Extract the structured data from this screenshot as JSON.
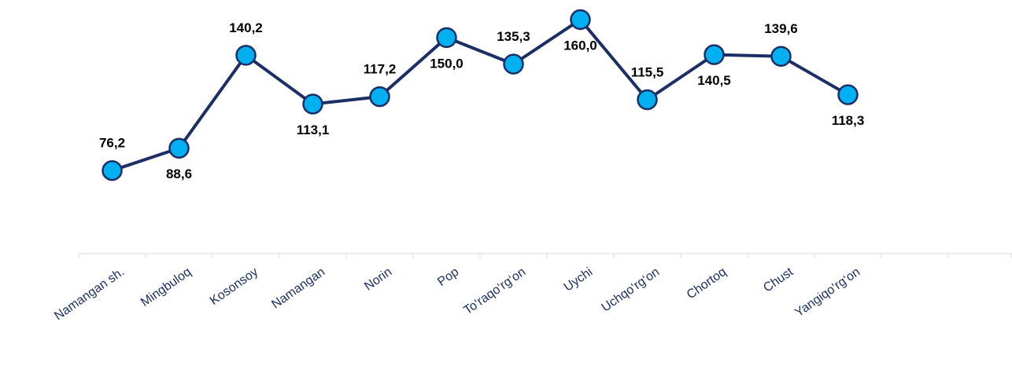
{
  "chart_data": {
    "type": "line",
    "categories": [
      "Namangan sh.",
      "Mingbuloq",
      "Kosonsoy",
      "Namangan",
      "Norin",
      "Pop",
      "To‘raqo‘rg‘on",
      "Uychi",
      "Uchqo‘rg‘on",
      "Chortoq",
      "Chust",
      "Yangiqo‘rg‘on",
      null,
      null
    ],
    "series": [
      {
        "name": null,
        "color": "#1b2f66",
        "marker_color": "#00b0f0",
        "values": [
          76.2,
          88.6,
          140.2,
          113.1,
          117.2,
          150.0,
          135.3,
          160.0,
          115.5,
          140.5,
          139.6,
          118.3,
          null,
          null
        ],
        "value_labels": [
          "76,2",
          "88,6",
          "140,2",
          "113,1",
          "117,2",
          "150,0",
          "135,3",
          "160,0",
          "115,5",
          "140,5",
          "139,6",
          "118,3",
          null,
          null
        ]
      }
    ],
    "ylim": [
      0,
      170
    ]
  }
}
